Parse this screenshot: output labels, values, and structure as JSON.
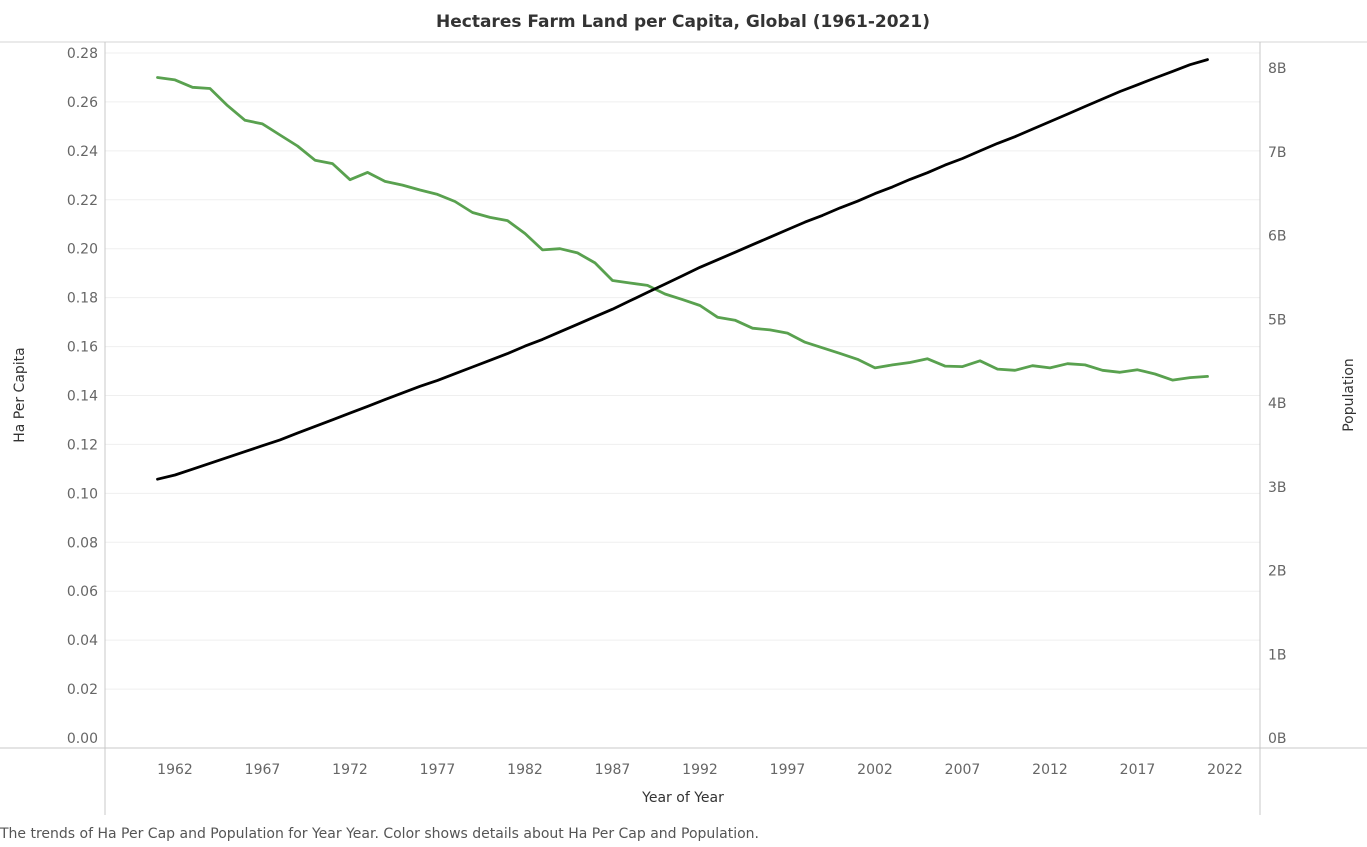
{
  "chart_data": {
    "type": "line",
    "title": "Hectares Farm Land per Capita, Global (1961-2021)",
    "xlabel": "Year of Year",
    "ylabel": "Ha Per Capita",
    "y2label": "Population",
    "xlim": [
      1958,
      2024
    ],
    "x_ticks": [
      1962,
      1967,
      1972,
      1977,
      1982,
      1987,
      1992,
      1997,
      2002,
      2007,
      2012,
      2017,
      2022
    ],
    "ylim": [
      0,
      0.28
    ],
    "y_ticks": [
      "0.00",
      "0.02",
      "0.04",
      "0.06",
      "0.08",
      "0.10",
      "0.12",
      "0.14",
      "0.16",
      "0.18",
      "0.20",
      "0.22",
      "0.24",
      "0.26",
      "0.28"
    ],
    "y2lim": [
      0,
      8
    ],
    "y2_ticks": [
      "0B",
      "1B",
      "2B",
      "3B",
      "4B",
      "5B",
      "6B",
      "7B",
      "8B"
    ],
    "grid": "horizontal",
    "x": [
      1961,
      1962,
      1963,
      1964,
      1965,
      1966,
      1967,
      1968,
      1969,
      1970,
      1971,
      1972,
      1973,
      1974,
      1975,
      1976,
      1977,
      1978,
      1979,
      1980,
      1981,
      1982,
      1983,
      1984,
      1985,
      1986,
      1987,
      1988,
      1989,
      1990,
      1991,
      1992,
      1993,
      1994,
      1995,
      1996,
      1997,
      1998,
      1999,
      2000,
      2001,
      2002,
      2003,
      2004,
      2005,
      2006,
      2007,
      2008,
      2009,
      2010,
      2011,
      2012,
      2013,
      2014,
      2015,
      2016,
      2017,
      2018,
      2019,
      2020,
      2021
    ],
    "series": [
      {
        "axis": "left",
        "color": "#59a14f",
        "values": [
          0.27,
          0.269,
          0.266,
          0.2655,
          0.2585,
          0.2525,
          0.251,
          0.2465,
          0.242,
          0.2362,
          0.2348,
          0.2282,
          0.2312,
          0.2275,
          0.226,
          0.224,
          0.2222,
          0.2193,
          0.2148,
          0.2128,
          0.2115,
          0.2062,
          0.1995,
          0.2,
          0.1983,
          0.1942,
          0.187,
          0.186,
          0.185,
          0.1815,
          0.1792,
          0.1768,
          0.172,
          0.1708,
          0.1675,
          0.1668,
          0.1655,
          0.1618,
          0.1595,
          0.1572,
          0.1548,
          0.1513,
          0.1525,
          0.1535,
          0.155,
          0.152,
          0.1518,
          0.1542,
          0.1508,
          0.1503,
          0.1522,
          0.1513,
          0.153,
          0.1525,
          0.1503,
          0.1495,
          0.1505,
          0.1488,
          0.1463,
          0.1473,
          0.1478
        ]
      },
      {
        "axis": "right",
        "color": "#000000",
        "values": [
          3.09,
          3.14,
          3.21,
          3.28,
          3.35,
          3.42,
          3.49,
          3.56,
          3.64,
          3.72,
          3.8,
          3.88,
          3.96,
          4.04,
          4.12,
          4.2,
          4.27,
          4.35,
          4.43,
          4.51,
          4.59,
          4.68,
          4.76,
          4.85,
          4.94,
          5.03,
          5.12,
          5.22,
          5.32,
          5.42,
          5.52,
          5.62,
          5.71,
          5.8,
          5.89,
          5.98,
          6.07,
          6.16,
          6.24,
          6.33,
          6.41,
          6.5,
          6.58,
          6.67,
          6.75,
          6.84,
          6.92,
          7.01,
          7.1,
          7.18,
          7.27,
          7.36,
          7.45,
          7.54,
          7.63,
          7.72,
          7.8,
          7.88,
          7.96,
          8.04,
          8.1
        ]
      }
    ]
  },
  "caption": "The trends of Ha Per Cap and Population for Year Year.  Color shows details about Ha Per Cap and Population."
}
